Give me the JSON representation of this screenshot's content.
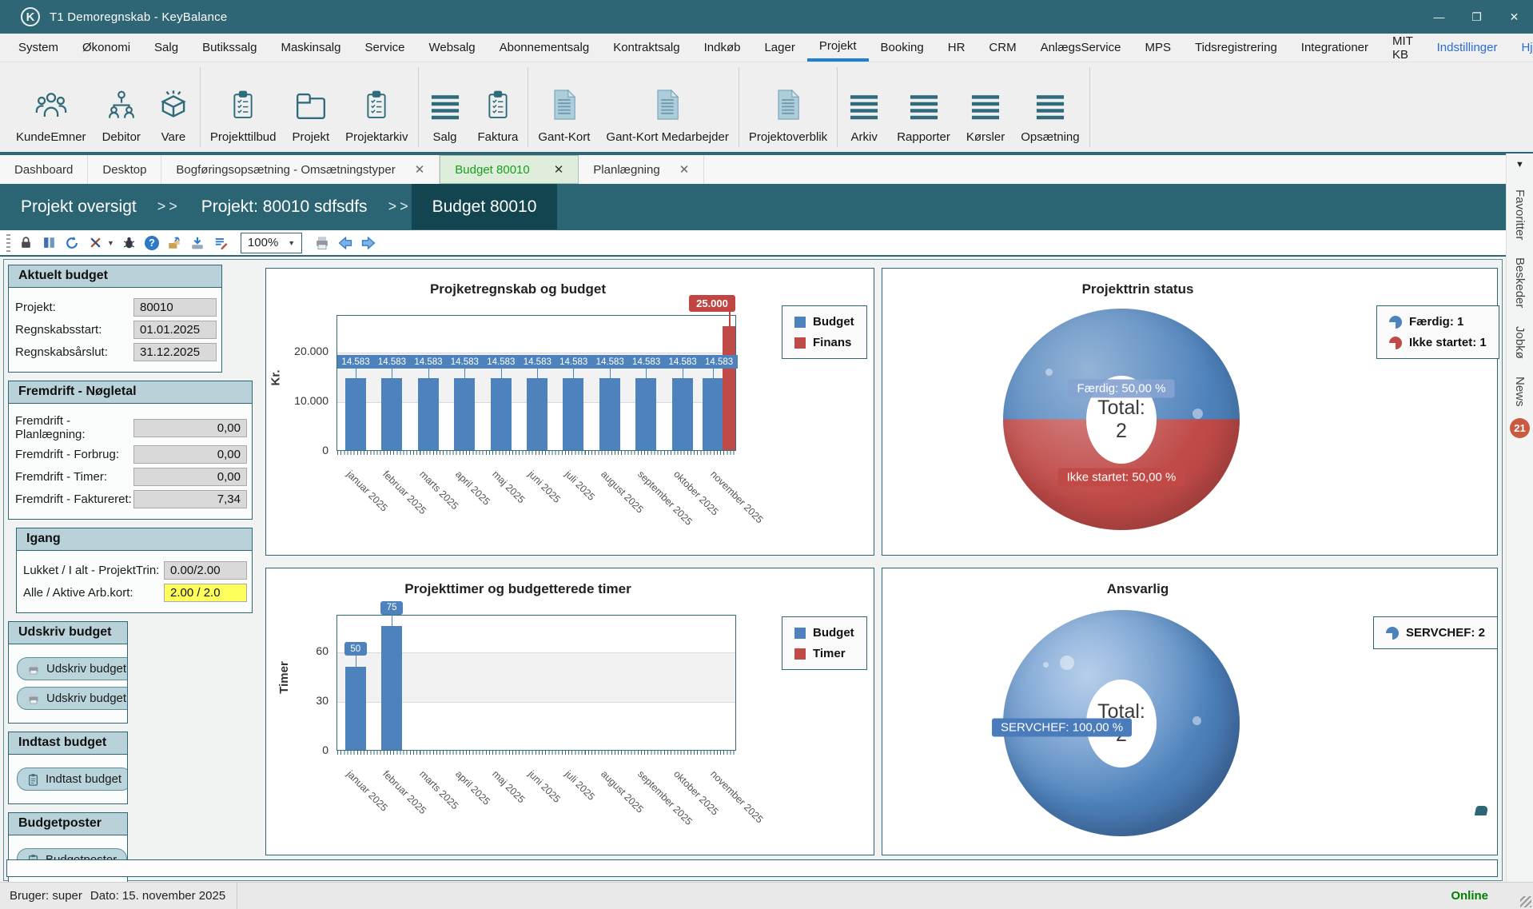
{
  "window": {
    "title": "T1 Demoregnskab - KeyBalance",
    "logo_letter": "K",
    "controls": {
      "minimize": "—",
      "maximize": "❐",
      "close": "✕"
    }
  },
  "menu": {
    "items": [
      "System",
      "Økonomi",
      "Salg",
      "Butikssalg",
      "Maskinsalg",
      "Service",
      "Websalg",
      "Abonnementsalg",
      "Kontraktsalg",
      "Indkøb",
      "Lager",
      "Projekt",
      "Booking",
      "HR",
      "CRM",
      "AnlægsService",
      "MPS",
      "Tidsregistrering",
      "Integrationer",
      "MIT KB"
    ],
    "active_item": "Projekt",
    "right_items": [
      "Indstillinger",
      "Hjælp"
    ]
  },
  "toolbar": {
    "groups": [
      {
        "items": [
          {
            "label": "KundeEmner",
            "icon": "people-icon"
          },
          {
            "label": "Debitor",
            "icon": "org-chart-icon"
          },
          {
            "label": "Vare",
            "icon": "box-icon"
          }
        ]
      },
      {
        "items": [
          {
            "label": "Projekttilbud",
            "icon": "clipboard-icon"
          },
          {
            "label": "Projekt",
            "icon": "folder-icon"
          },
          {
            "label": "Projektarkiv",
            "icon": "clipboard-icon"
          }
        ]
      },
      {
        "items": [
          {
            "label": "Salg",
            "icon": "menu-lines-icon"
          },
          {
            "label": "Faktura",
            "icon": "clipboard-icon"
          }
        ]
      },
      {
        "items": [
          {
            "label": "Gant-Kort",
            "icon": "document-icon"
          },
          {
            "label": "Gant-Kort Medarbejder",
            "icon": "document-icon"
          }
        ]
      },
      {
        "items": [
          {
            "label": "Projektoverblik",
            "icon": "document-icon"
          }
        ]
      },
      {
        "items": [
          {
            "label": "Arkiv",
            "icon": "menu-lines-icon"
          },
          {
            "label": "Rapporter",
            "icon": "menu-lines-icon"
          },
          {
            "label": "Kørsler",
            "icon": "menu-lines-icon"
          },
          {
            "label": "Opsætning",
            "icon": "menu-lines-icon"
          }
        ]
      }
    ]
  },
  "tabs": {
    "items": [
      {
        "label": "Dashboard",
        "closable": false,
        "active": false
      },
      {
        "label": "Desktop",
        "closable": false,
        "active": false
      },
      {
        "label": "Bogføringsopsætning - Omsætningstyper",
        "closable": true,
        "active": false
      },
      {
        "label": "Budget 80010",
        "closable": true,
        "active": true
      },
      {
        "label": "Planlægning",
        "closable": true,
        "active": false
      }
    ],
    "close_glyph": "✕",
    "overflow_glyph": "▼"
  },
  "breadcrumb": {
    "separator": ">>",
    "segments": [
      {
        "label": "Projekt oversigt",
        "active": false
      },
      {
        "label": "Projekt: 80010 sdfsdfs",
        "active": false
      },
      {
        "label": "Budget 80010",
        "active": true
      }
    ]
  },
  "mini_toolbar": {
    "icons": [
      "drag-handle",
      "lock",
      "columns",
      "refresh",
      "tools",
      "bug",
      "help",
      "export",
      "import",
      "edit-notes",
      "printer",
      "nav-back",
      "nav-forward"
    ],
    "zoom_value": "100%",
    "help_glyph": "?"
  },
  "sidebar": {
    "aktuelt_budget": {
      "title": "Aktuelt budget",
      "projekt_label": "Projekt:",
      "projekt_value": "80010",
      "regnskabsstart_label": "Regnskabsstart:",
      "regnskabsstart_value": "01.01.2025",
      "regnskabsaarslut_label": "Regnskabsårslut:",
      "regnskabsaarslut_value": "31.12.2025"
    },
    "fremdrift": {
      "title": "Fremdrift - Nøgletal",
      "rows": [
        {
          "label": "Fremdrift - Planlægning:",
          "value": "0,00"
        },
        {
          "label": "Fremdrift - Forbrug:",
          "value": "0,00"
        },
        {
          "label": "Fremdrift - Timer:",
          "value": "0,00"
        },
        {
          "label": "Fremdrift - Faktureret:",
          "value": "7,34"
        }
      ]
    },
    "igang": {
      "title": "Igang",
      "rows": [
        {
          "label": "Lukket / I alt - ProjektTrin:",
          "value": "0.00/2.00",
          "highlight": false
        },
        {
          "label": "Alle / Aktive Arb.kort:",
          "value": "2.00 / 2.0",
          "highlight": true
        }
      ]
    },
    "udskriv_budget": {
      "title": "Udskriv budget",
      "buttons": [
        "Udskriv budget",
        "Udskriv budget r"
      ]
    },
    "indtast_budget": {
      "title": "Indtast budget",
      "buttons": [
        "Indtast budget"
      ]
    },
    "budgetposter": {
      "title": "Budgetposter",
      "buttons": [
        "Budgetposter"
      ]
    }
  },
  "chart_data": [
    {
      "type": "bar",
      "title": "Projketregnskab og budget",
      "ylabel": "Kr.",
      "ylim": [
        0,
        27500
      ],
      "yticks": [
        {
          "value": 0,
          "label": "0"
        },
        {
          "value": 10000,
          "label": "10.000"
        },
        {
          "value": 20000,
          "label": "20.000"
        }
      ],
      "band": [
        10000,
        20000
      ],
      "grid": true,
      "legend_position": "right",
      "categories": [
        "januar 2025",
        "februar 2025",
        "marts 2025",
        "april 2025",
        "maj 2025",
        "juni 2025",
        "juli 2025",
        "august 2025",
        "september 2025",
        "oktober 2025",
        "november 2025"
      ],
      "series": [
        {
          "name": "Budget",
          "color": "#4E82BC",
          "values": [
            14583,
            14583,
            14583,
            14583,
            14583,
            14583,
            14583,
            14583,
            14583,
            14583,
            14583
          ],
          "labels": [
            "14.583",
            "14.583",
            "14.583",
            "14.583",
            "14.583",
            "14.583",
            "14.583",
            "14.583",
            "14.583",
            "14.583",
            "14.583"
          ]
        },
        {
          "name": "Finans",
          "color": "#BF4A48",
          "values": [
            null,
            null,
            null,
            null,
            null,
            null,
            null,
            null,
            null,
            null,
            25000
          ],
          "labels": [
            null,
            null,
            null,
            null,
            null,
            null,
            null,
            null,
            null,
            null,
            "25.000"
          ]
        }
      ]
    },
    {
      "type": "pie",
      "title": "Projekttrin status",
      "slices": [
        {
          "label": "Færdig",
          "value": 1,
          "percent_label": "Færdig: 50,00 %",
          "color": "#4E82BC"
        },
        {
          "label": "Ikke startet",
          "value": 1,
          "percent_label": "Ikke startet: 50,00 %",
          "color": "#BF4A48"
        }
      ],
      "center_label": "Total:",
      "center_value": "2",
      "legend": [
        {
          "text": "Færdig: 1",
          "color": "#4E82BC"
        },
        {
          "text": "Ikke startet: 1",
          "color": "#BF4A48"
        }
      ],
      "legend_position": "right"
    },
    {
      "type": "bar",
      "title": "Projekttimer og budgetterede timer",
      "ylabel": "Timer",
      "ylim": [
        0,
        82
      ],
      "yticks": [
        {
          "value": 0,
          "label": "0"
        },
        {
          "value": 30,
          "label": "30"
        },
        {
          "value": 60,
          "label": "60"
        }
      ],
      "band": [
        30,
        60
      ],
      "grid": true,
      "legend_position": "right",
      "categories": [
        "januar 2025",
        "februar 2025",
        "marts 2025",
        "april 2025",
        "maj 2025",
        "juni 2025",
        "juli 2025",
        "august 2025",
        "september 2025",
        "oktober 2025",
        "november 2025"
      ],
      "series": [
        {
          "name": "Budget",
          "color": "#4E82BC",
          "values": [
            50,
            75,
            0,
            0,
            0,
            0,
            0,
            0,
            0,
            0,
            0
          ],
          "labels": [
            "50",
            "75",
            null,
            null,
            null,
            null,
            null,
            null,
            null,
            null,
            null
          ]
        },
        {
          "name": "Timer",
          "color": "#BF4A48",
          "values": [
            0,
            0,
            0,
            0,
            0,
            0,
            0,
            0,
            0,
            0,
            0
          ],
          "labels": [
            null,
            null,
            null,
            null,
            null,
            null,
            null,
            null,
            null,
            null,
            null
          ]
        }
      ]
    },
    {
      "type": "pie",
      "title": "Ansvarlig",
      "slices": [
        {
          "label": "SERVCHEF",
          "value": 2,
          "percent_label": "SERVCHEF: 100,00 %",
          "color": "#4E82BC"
        }
      ],
      "center_label": "Total:",
      "center_value": "2",
      "legend": [
        {
          "text": "SERVCHEF: 2",
          "color": "#4E82BC"
        }
      ],
      "legend_position": "right"
    }
  ],
  "right_rail": {
    "tabs": [
      "Favoritter",
      "Beskeder",
      "Jobkø",
      "News"
    ],
    "news_badge": "21"
  },
  "status_bar": {
    "user": "Bruger: super",
    "date": "Dato: 15. november 2025",
    "connection": "Online",
    "connection_color": "#008000"
  }
}
